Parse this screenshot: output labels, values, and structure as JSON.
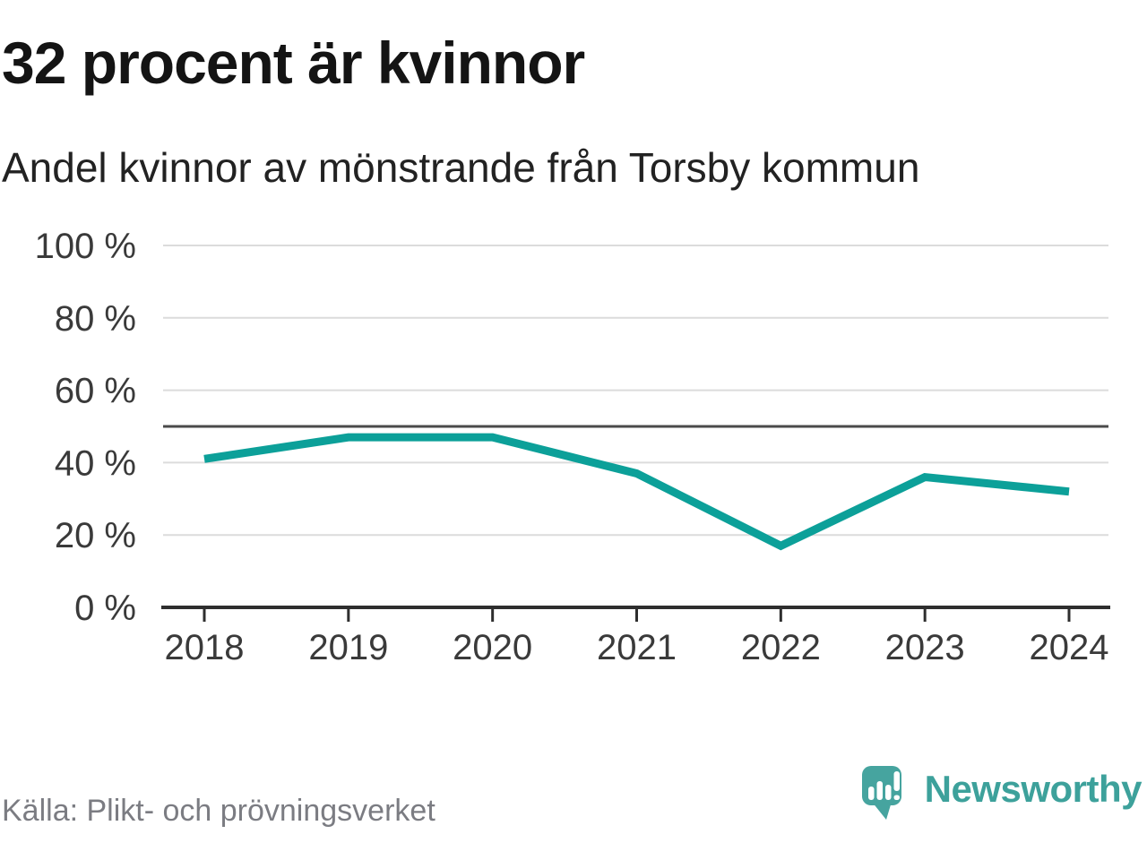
{
  "header": {
    "title": "32 procent är kvinnor",
    "subtitle": "Andel kvinnor av mönstrande från Torsby kommun"
  },
  "chart_data": {
    "type": "line",
    "x": [
      2018,
      2019,
      2020,
      2021,
      2022,
      2023,
      2024
    ],
    "x_tick_labels": [
      "2018",
      "2019",
      "2020",
      "2021",
      "2022",
      "2023",
      "2024"
    ],
    "series": [
      {
        "name": "Andel kvinnor",
        "values": [
          41,
          47,
          47,
          37,
          17,
          36,
          32
        ]
      }
    ],
    "reference_line": {
      "value": 50
    },
    "ylim": [
      0,
      100
    ],
    "y_ticks": [
      0,
      20,
      40,
      60,
      80,
      100
    ],
    "y_tick_labels": [
      "0 %",
      "20 %",
      "40 %",
      "60 %",
      "80 %",
      "100 %"
    ],
    "grid": "horizontal",
    "legend": "none"
  },
  "footer": {
    "source": "Källa: Plikt- och prövningsverket",
    "brand": "Newsworthy"
  },
  "colors": {
    "line": "#0ca099",
    "reference": "#4a4a4a",
    "grid": "#dcdcdc",
    "axis": "#2e2e2e",
    "tick_label": "#3a3a3a",
    "title_text": "#141414",
    "subtitle_text": "#222222",
    "source_text": "#7b7c82",
    "brand_teal": "#46a49f",
    "brand_text_teal": "#3da19b"
  },
  "icons": {
    "logo_mark": "newsworthy-speech-bubble-bar-chart-icon"
  }
}
